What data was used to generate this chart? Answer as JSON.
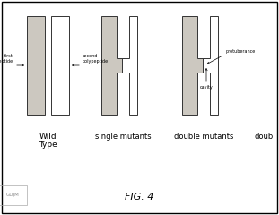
{
  "bg_color": "#ffffff",
  "border_color": "#333333",
  "fill_color": "#ccc8c0",
  "lw": 0.7,
  "fig_title": "FIG. 4",
  "wild_label": [
    "Wild",
    "Type"
  ],
  "single_label": "single mutants",
  "double_label": "double mutants",
  "doub_label": "doub",
  "ann_first": "first\npolypeptide",
  "ann_second": "second\npolypeptide",
  "ann_protuberance": "protuberance",
  "ann_cavity": "cavity",
  "wm_text": "GDJM",
  "figsize": [
    3.11,
    2.4
  ],
  "dpi": 100
}
